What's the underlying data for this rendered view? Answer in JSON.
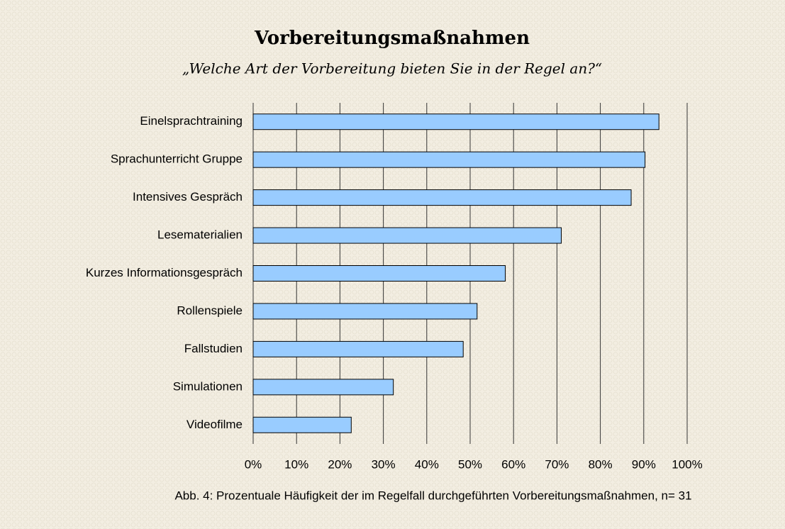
{
  "chart_data": {
    "type": "bar",
    "orientation": "horizontal",
    "title": "Vorbereitungsmaßnahmen",
    "subtitle": "„Welche Art der Vorbereitung bieten Sie in der Regel an?“",
    "caption": "Abb. 4: Prozentuale Häufigkeit der im Regelfall durchgeführten Vorbereitungsmaßnahmen, n= 31",
    "categories": [
      "Einelsprachtraining",
      "Sprachunterricht Gruppe",
      "Intensives Gespräch",
      "Lesematerialien",
      "Kurzes Informationsgespräch",
      "Rollenspiele",
      "Fallstudien",
      "Simulationen",
      "Videofilme"
    ],
    "values": [
      93.5,
      90.3,
      87.1,
      71,
      58.1,
      51.6,
      48.4,
      32.3,
      22.6
    ],
    "color": "#99ccff",
    "xlim": [
      0,
      100
    ],
    "xticks": [
      {
        "value": 0,
        "label": "0%"
      },
      {
        "value": 10,
        "label": "10%"
      },
      {
        "value": 20,
        "label": "20%"
      },
      {
        "value": 30,
        "label": "30%"
      },
      {
        "value": 40,
        "label": "40%"
      },
      {
        "value": 50,
        "label": "50%"
      },
      {
        "value": 60,
        "label": "60%"
      },
      {
        "value": 70,
        "label": "70%"
      },
      {
        "value": 80,
        "label": "80%"
      },
      {
        "value": 90,
        "label": "90%"
      },
      {
        "value": 100,
        "label": "100%"
      }
    ],
    "grid": true
  }
}
